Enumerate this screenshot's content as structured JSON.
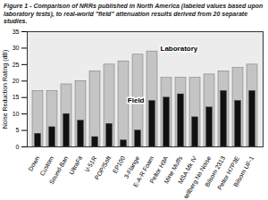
{
  "chart_data": {
    "type": "bar",
    "title": "Figure 1 - Comparison of NRRs published in North America (labeled values based upon laboratory tests), to real-world \"field\" attenuation results derived from 20 separate studies.",
    "y_label": "Noise Reduction Rating (dB)",
    "categories": [
      "Down",
      "Custom",
      "Sound-Ban",
      "UltraFit",
      "V-51R",
      "POP/Soft",
      "EP100",
      "3-Flange",
      "E-A-R Foam",
      "Peltor H9A",
      "Mine Muffs",
      "MSA Mk IV",
      "Hellberg No Noise",
      "Bilsom 2313",
      "Peltor H7P3E",
      "Bilsom UF-1"
    ],
    "series": [
      {
        "name": "Laboratory",
        "color": "#c4c4c4",
        "values": [
          17,
          17,
          19,
          20,
          23,
          25,
          26,
          28,
          29,
          21,
          21,
          21,
          22,
          23,
          24,
          25
        ]
      },
      {
        "name": "Field",
        "color": "#111111",
        "values": [
          4,
          6,
          10,
          8,
          3,
          7,
          2,
          5,
          14,
          15,
          16,
          9,
          12,
          17,
          14,
          17
        ]
      }
    ],
    "ylim": [
      0,
      35
    ],
    "yticks": [
      0,
      5,
      10,
      15,
      20,
      25,
      30,
      35
    ],
    "grid": false
  }
}
